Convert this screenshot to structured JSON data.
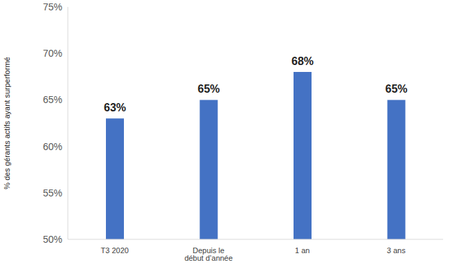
{
  "chart_data": {
    "type": "bar",
    "y_label": "% des gérants actifs ayant surperformé",
    "categories": [
      "T3 2020",
      "Depuis le début d’année",
      "1 an",
      "3 ans"
    ],
    "values": [
      63,
      65,
      68,
      65
    ],
    "value_labels": [
      "63%",
      "65%",
      "68%",
      "65%"
    ],
    "data_labels": true,
    "color": "#4472c4",
    "ylim": [
      50,
      75
    ],
    "yticks": [
      {
        "value": 50,
        "label": "50%"
      },
      {
        "value": 55,
        "label": "55%"
      },
      {
        "value": 60,
        "label": "60%"
      },
      {
        "value": 65,
        "label": "65%"
      },
      {
        "value": 70,
        "label": "70%"
      },
      {
        "value": 75,
        "label": "75%"
      }
    ],
    "grid": false
  }
}
